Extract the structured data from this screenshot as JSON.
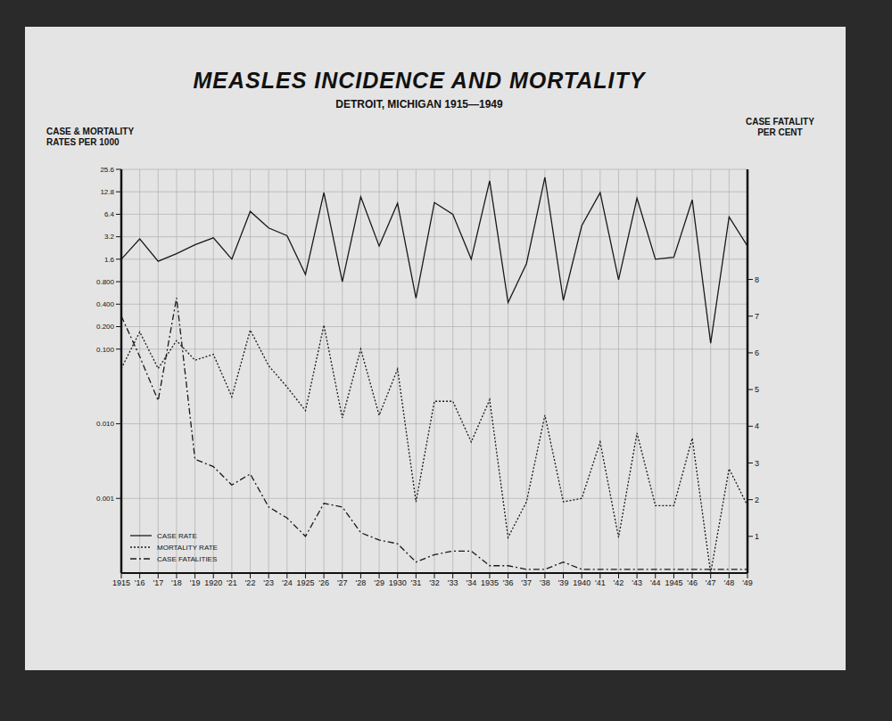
{
  "chart_data": {
    "type": "line",
    "title": "MEASLES INCIDENCE AND MORTALITY",
    "subtitle": "DETROIT, MICHIGAN 1915—1949",
    "y_label": "CASE & MORTALITY\nRATES PER 1000",
    "y2_label": "CASE FATALITY\nPER CENT",
    "categories": [
      "1915",
      "'16",
      "'17",
      "'18",
      "'19",
      "1920",
      "'21",
      "'22",
      "'23",
      "'24",
      "1925",
      "'26",
      "'27",
      "'28",
      "'29",
      "1930",
      "'31",
      "'32",
      "'33",
      "'34",
      "1935",
      "'36",
      "'37",
      "'38",
      "'39",
      "1940",
      "'41",
      "'42",
      "'43",
      "'44",
      "1945",
      "'46",
      "'47",
      "'48",
      "'49"
    ],
    "series": [
      {
        "name": "CASE RATE",
        "color": "#1a1a1a",
        "line_style": "solid",
        "values": [
          1.6,
          3.0,
          1.5,
          1.9,
          2.5,
          3.1,
          1.6,
          7.0,
          4.2,
          3.3,
          1.0,
          12.5,
          0.8,
          11,
          2.4,
          9,
          0.48,
          9.2,
          6.4,
          1.6,
          18,
          0.42,
          1.4,
          20,
          0.45,
          4.5,
          12.5,
          0.85,
          10.5,
          1.6,
          1.7,
          10,
          0.12,
          5.9,
          2.4
        ]
      },
      {
        "name": "MORTALITY RATE",
        "color": "#1a1a1a",
        "line_style": "dotted",
        "values": [
          0.055,
          0.17,
          0.055,
          0.13,
          0.071,
          0.085,
          0.023,
          0.18,
          0.06,
          0.031,
          0.015,
          0.21,
          0.012,
          0.1,
          0.013,
          0.054,
          0.0009,
          0.02,
          0.02,
          0.0057,
          0.021,
          0.0003,
          0.0009,
          0.013,
          0.0009,
          0.001,
          0.0057,
          0.0003,
          0.0075,
          0.0008,
          0.0008,
          0.0064,
          0.0001,
          0.0025,
          0.0008
        ]
      },
      {
        "name": "CASE FATALITIES",
        "color": "#1a1a1a",
        "line_style": "dashdot",
        "axis": "y2",
        "values": [
          7.0,
          5.9,
          4.7,
          7.5,
          3.1,
          2.9,
          2.4,
          2.7,
          1.8,
          1.5,
          1.0,
          1.9,
          1.8,
          1.1,
          0.9,
          0.8,
          0.3,
          0.5,
          0.6,
          0.6,
          0.2,
          0.2,
          0.1,
          0.1,
          0.3,
          0.1,
          0.1,
          0.1,
          0.1,
          0.1,
          0.1,
          0.1,
          0.1,
          0.1,
          0.1
        ]
      }
    ],
    "log": "y",
    "ylim": [
      0.0001,
      25.6
    ],
    "yticks": [
      0.001,
      {
        "value": 0.01,
        "label": "0.010"
      },
      {
        "value": 0.1,
        "label": "0.100"
      },
      {
        "value": 0.2,
        "label": "0.200"
      },
      {
        "value": 0.4,
        "label": "0.400"
      },
      {
        "value": 0.8,
        "label": "0.800"
      },
      1.6,
      3.2,
      6.4,
      12.8,
      25.6
    ],
    "y2lim": [
      0,
      11
    ],
    "y2ticks": [
      1,
      2,
      3,
      4,
      5,
      6,
      7,
      8
    ],
    "grid": true,
    "legend": "lower left"
  }
}
